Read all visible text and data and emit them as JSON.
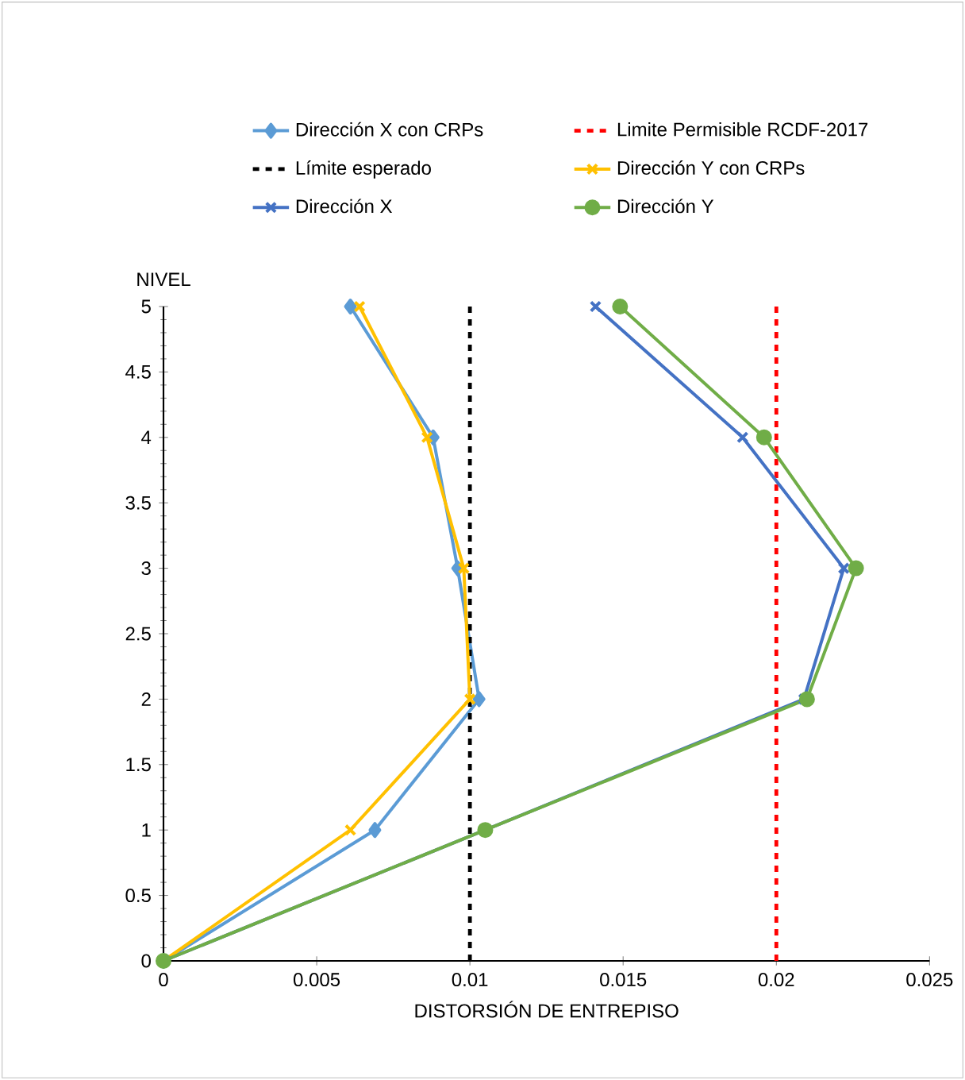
{
  "chart_data": {
    "type": "line",
    "xlabel": "DISTORSIÓN DE ENTREPISO",
    "ylabel": "NIVEL",
    "xlim": [
      0,
      0.025
    ],
    "ylim": [
      0,
      5
    ],
    "xticks": [
      0,
      0.005,
      0.01,
      0.015,
      0.02,
      0.025
    ],
    "yticks": [
      0,
      0.5,
      1,
      1.5,
      2,
      2.5,
      3,
      3.5,
      4,
      4.5,
      5
    ],
    "grid": false,
    "legend": "top",
    "line_style": "solid",
    "series": [
      {
        "name": "Dirección X con CRPs",
        "color": "#5b9bd5",
        "marker": "diamond",
        "x": [
          0,
          0.0069,
          0.0103,
          0.0096,
          0.0088,
          0.0061
        ],
        "values": [
          0,
          1,
          2,
          3,
          4,
          5
        ]
      },
      {
        "name": "Dirección Y con CRPs",
        "color": "#ffc000",
        "marker": "cross",
        "x": [
          0,
          0.0061,
          0.01,
          0.0098,
          0.0086,
          0.0064
        ],
        "values": [
          0,
          1,
          2,
          3,
          4,
          5
        ]
      },
      {
        "name": "Dirección X",
        "color": "#4472c4",
        "marker": "cross",
        "x": [
          0,
          0.0105,
          0.0209,
          0.0222,
          0.0189,
          0.0141
        ],
        "values": [
          0,
          1,
          2,
          3,
          4,
          5
        ]
      },
      {
        "name": "Dirección Y",
        "color": "#70ad47",
        "marker": "circle",
        "x": [
          0,
          0.0105,
          0.021,
          0.0226,
          0.0196,
          0.0149
        ],
        "values": [
          0,
          1,
          2,
          3,
          4,
          5
        ]
      }
    ],
    "ref_lines": [
      {
        "axis": "x",
        "value": 0.02,
        "label": "Limite Permisible RCDF-2017",
        "color": "#ff0000",
        "line_style": "dashed"
      },
      {
        "axis": "x",
        "value": 0.01,
        "label": "Límite esperado",
        "color": "#000000",
        "line_style": "dashed"
      }
    ]
  }
}
